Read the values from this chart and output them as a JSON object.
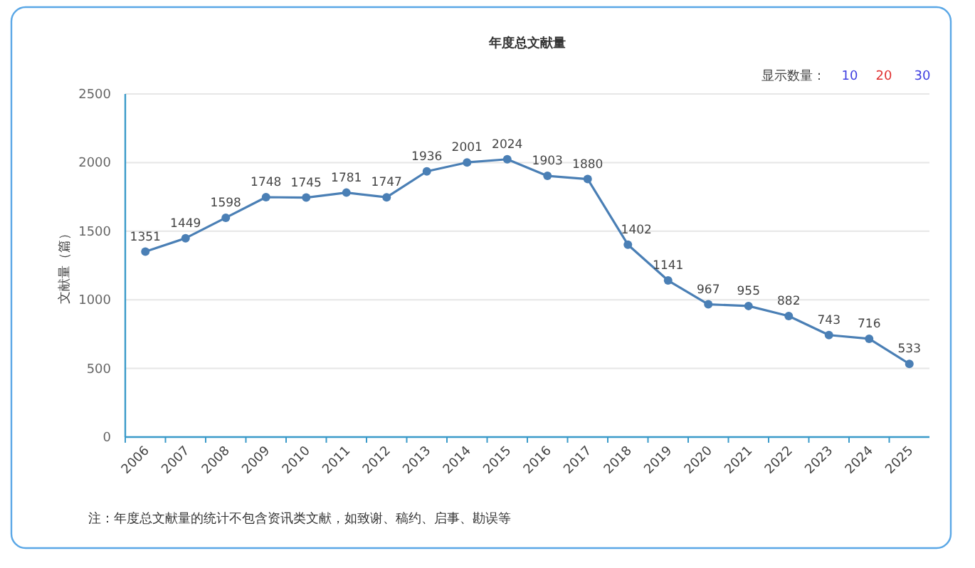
{
  "chart_data": {
    "type": "line",
    "title": "年度总文献量",
    "ylabel": "文献量（篇）",
    "categories": [
      "2006",
      "2007",
      "2008",
      "2009",
      "2010",
      "2011",
      "2012",
      "2013",
      "2014",
      "2015",
      "2016",
      "2017",
      "2018",
      "2019",
      "2020",
      "2021",
      "2022",
      "2023",
      "2024",
      "2025"
    ],
    "series": [
      {
        "color": "#4a7fb5",
        "values": [
          1351,
          1449,
          1598,
          1748,
          1745,
          1781,
          1747,
          1936,
          2001,
          2024,
          1903,
          1880,
          1402,
          1141,
          967,
          955,
          882,
          743,
          716,
          533
        ]
      }
    ],
    "ylim": [
      0,
      2500
    ],
    "yticks": [
      0,
      500,
      1000,
      1500,
      2000,
      2500
    ],
    "grid": "y",
    "marker": "circle",
    "line_style": "solid",
    "data_labels": true,
    "annotations": [
      "显示数量：",
      "10",
      "20",
      "30",
      "注：年度总文献量的统计不包含资讯类文献，如致谢、稿约、启事、勘误等"
    ]
  }
}
